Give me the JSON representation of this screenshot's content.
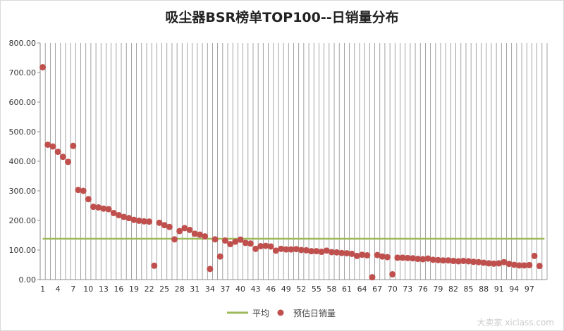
{
  "chart_data": {
    "type": "scatter",
    "title": "吸尘器BSR榜单TOP100--日销量分布",
    "xlabel": "",
    "ylabel": "",
    "ylim": [
      0,
      800
    ],
    "y_ticks": [
      "0.00",
      "100.00",
      "200.00",
      "300.00",
      "400.00",
      "500.00",
      "600.00",
      "700.00",
      "800.00"
    ],
    "x_tick_labels": [
      "1",
      "4",
      "7",
      "10",
      "13",
      "16",
      "19",
      "22",
      "25",
      "28",
      "31",
      "34",
      "37",
      "40",
      "43",
      "46",
      "49",
      "52",
      "55",
      "58",
      "61",
      "64",
      "67",
      "70",
      "73",
      "76",
      "79",
      "82",
      "85",
      "88",
      "91",
      "94",
      "97"
    ],
    "grid": {
      "vertical": true,
      "horizontal": false
    },
    "legend_position": "bottom",
    "series": [
      {
        "name": "平均",
        "kind": "line",
        "color": "#9bbb59",
        "value": 138
      },
      {
        "name": "预估日销量",
        "kind": "scatter",
        "color": "#c0504d",
        "x": [
          1,
          2,
          3,
          4,
          5,
          6,
          7,
          8,
          9,
          10,
          11,
          12,
          13,
          14,
          15,
          16,
          17,
          18,
          19,
          20,
          21,
          22,
          23,
          24,
          25,
          26,
          27,
          28,
          29,
          30,
          31,
          32,
          33,
          34,
          35,
          36,
          37,
          38,
          39,
          40,
          41,
          42,
          43,
          44,
          45,
          46,
          47,
          48,
          49,
          50,
          51,
          52,
          53,
          54,
          55,
          56,
          57,
          58,
          59,
          60,
          61,
          62,
          63,
          64,
          65,
          66,
          67,
          68,
          69,
          70,
          71,
          72,
          73,
          74,
          75,
          76,
          77,
          78,
          79,
          80,
          81,
          82,
          83,
          84,
          85,
          86,
          87,
          88,
          89,
          90,
          91,
          92,
          93,
          94,
          95,
          96,
          97,
          98,
          99
        ],
        "values": [
          718,
          456,
          450,
          432,
          415,
          398,
          452,
          303,
          300,
          272,
          246,
          244,
          240,
          238,
          225,
          218,
          212,
          208,
          202,
          199,
          197,
          196,
          47,
          192,
          184,
          178,
          136,
          164,
          174,
          168,
          155,
          152,
          146,
          36,
          136,
          78,
          132,
          120,
          128,
          135,
          124,
          122,
          104,
          113,
          114,
          112,
          98,
          104,
          102,
          102,
          103,
          100,
          99,
          96,
          96,
          94,
          98,
          93,
          92,
          90,
          89,
          87,
          80,
          84,
          82,
          8,
          83,
          78,
          76,
          18,
          74,
          74,
          73,
          72,
          70,
          69,
          71,
          67,
          66,
          65,
          65,
          63,
          62,
          63,
          62,
          60,
          59,
          57,
          55,
          54,
          55,
          59,
          53,
          50,
          48,
          48,
          49,
          80,
          46
        ]
      }
    ]
  },
  "watermark": "大卖家 xiclass.com"
}
